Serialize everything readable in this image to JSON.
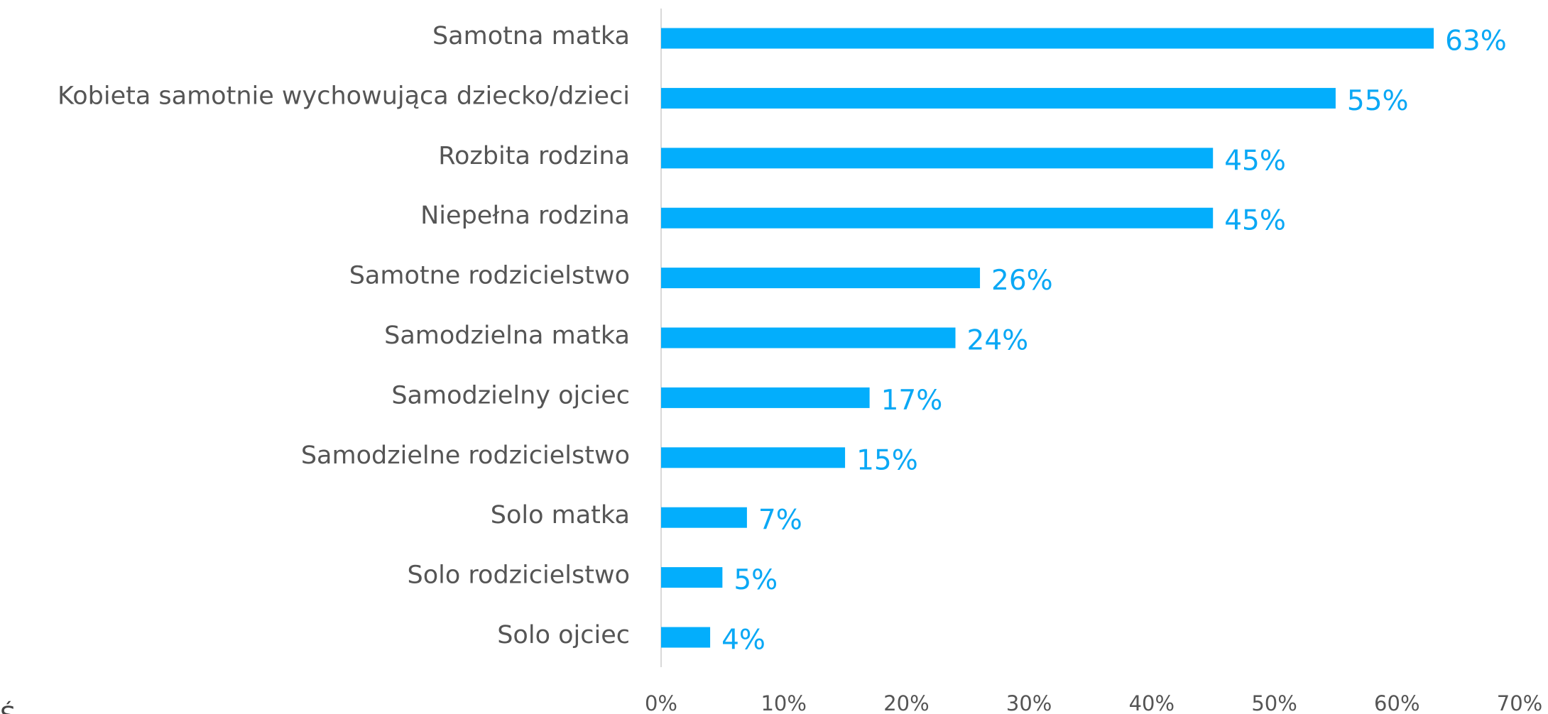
{
  "chart_data": {
    "type": "bar",
    "orientation": "horizontal",
    "categories": [
      "Samotna matka",
      "Kobieta samotnie wychowująca dziecko/dzieci",
      "Rozbita rodzina",
      "Niepełna rodzina",
      "Samotne rodzicielstwo",
      "Samodzielna matka",
      "Samodzielny ojciec",
      "Samodzielne rodzicielstwo",
      "Solo matka",
      "Solo rodzicielstwo",
      "Solo ojciec"
    ],
    "values": [
      63,
      55,
      45,
      45,
      26,
      24,
      17,
      15,
      7,
      5,
      4
    ],
    "value_labels": [
      "63%",
      "55%",
      "45%",
      "45%",
      "26%",
      "24%",
      "17%",
      "15%",
      "7%",
      "5%",
      "4%"
    ],
    "color": "#03aefc",
    "xlim": [
      0,
      70
    ],
    "xticks": [
      {
        "value": 0,
        "label": "0%"
      },
      {
        "value": 10,
        "label": "10%"
      },
      {
        "value": 20,
        "label": "20%"
      },
      {
        "value": 30,
        "label": "30%"
      },
      {
        "value": 40,
        "label": "40%"
      },
      {
        "value": 50,
        "label": "50%"
      },
      {
        "value": 60,
        "label": "60%"
      },
      {
        "value": 70,
        "label": "70%"
      }
    ],
    "grid": false,
    "footnote": "Ś"
  }
}
